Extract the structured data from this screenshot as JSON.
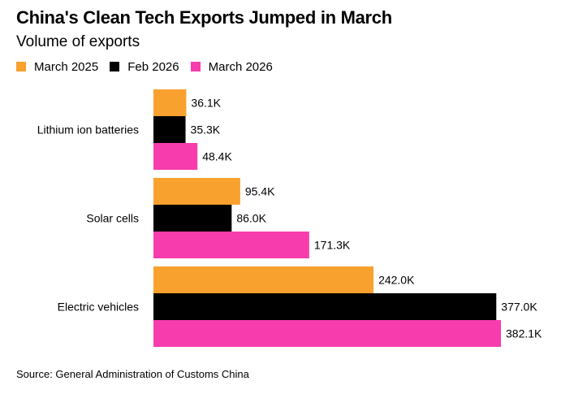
{
  "chart_data": {
    "type": "bar",
    "orientation": "horizontal",
    "title": "China's Clean Tech Exports Jumped in March",
    "subtitle": "Volume of exports",
    "categories": [
      "Lithium ion batteries",
      "Solar cells",
      "Electric vehicles"
    ],
    "series": [
      {
        "name": "March 2025",
        "color": "#F9A12E",
        "values": [
          36.1,
          95.4,
          242.0
        ],
        "labels": [
          "36.1K",
          "95.4K",
          "242.0K"
        ]
      },
      {
        "name": "Feb 2026",
        "color": "#000000",
        "values": [
          35.3,
          86.0,
          377.0
        ],
        "labels": [
          "35.3K",
          "86.0K",
          "377.0K"
        ]
      },
      {
        "name": "March 2026",
        "color": "#F73DAE",
        "values": [
          48.4,
          171.3,
          382.1
        ],
        "labels": [
          "48.4K",
          "171.3K",
          "382.1K"
        ]
      }
    ],
    "legend_position": "top-left",
    "grid": false,
    "xlim": [
      0,
      382.1
    ],
    "source": "Source: General Administration of Customs China"
  }
}
